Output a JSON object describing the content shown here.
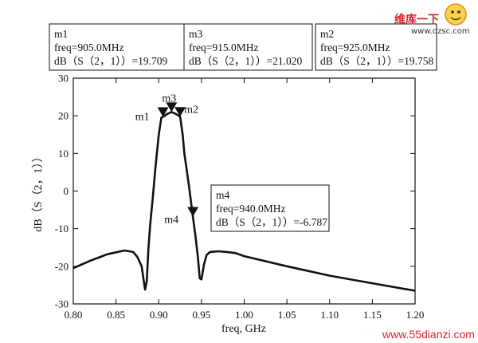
{
  "chart_data": {
    "type": "line",
    "xlabel": "freq, GHz",
    "ylabel": "dB（S（2，1））",
    "xlim": [
      0.8,
      1.2
    ],
    "ylim": [
      -30,
      30
    ],
    "x_ticks": [
      "0.80",
      "0.85",
      "0.90",
      "0.95",
      "1.00",
      "1.05",
      "1.10",
      "1.15",
      "1.20"
    ],
    "y_ticks": [
      "30",
      "20",
      "10",
      "0",
      "-10",
      "-20",
      "-30"
    ],
    "grid": false,
    "series": [
      {
        "x": [
          0.8,
          0.82,
          0.84,
          0.86,
          0.87,
          0.875,
          0.88,
          0.884,
          0.886,
          0.888,
          0.89,
          0.893,
          0.896,
          0.9,
          0.903,
          0.905,
          0.91,
          0.915,
          0.92,
          0.925,
          0.928,
          0.93,
          0.935,
          0.94,
          0.943,
          0.946,
          0.948,
          0.95,
          0.953,
          0.956,
          0.96,
          0.97,
          0.98,
          0.99,
          1.0,
          1.05,
          1.1,
          1.15,
          1.2
        ],
        "y": [
          -20.5,
          -18.5,
          -16.8,
          -15.8,
          -16.2,
          -17.5,
          -20.0,
          -26.2,
          -24.0,
          -15.0,
          -9.0,
          -2.0,
          6.0,
          15.0,
          19.5,
          19.709,
          20.5,
          21.02,
          20.5,
          19.758,
          15.0,
          10.0,
          2.0,
          -6.787,
          -12.0,
          -18.0,
          -23.2,
          -23.5,
          -19.5,
          -17.0,
          -16.2,
          -16.0,
          -16.2,
          -16.5,
          -17.3,
          -20.0,
          -22.5,
          -24.5,
          -26.5
        ]
      }
    ],
    "markers": [
      {
        "id": "m1",
        "x": 0.905,
        "y": 19.709
      },
      {
        "id": "m3",
        "x": 0.915,
        "y": 21.02
      },
      {
        "id": "m2",
        "x": 0.925,
        "y": 19.758
      },
      {
        "id": "m4",
        "x": 0.94,
        "y": -6.787
      }
    ],
    "info_boxes": [
      {
        "name": "m1",
        "freq": "freq=905.0MHz",
        "value": "dB（S（2，1））=19.709"
      },
      {
        "name": "m3",
        "freq": "freq=915.0MHz",
        "value": "dB（S（2，1））=21.020"
      },
      {
        "name": "m2",
        "freq": "freq=925.0MHz",
        "value": "dB（S（2，1））=19.758"
      },
      {
        "name": "m4",
        "freq": "freq=940.0MHz",
        "value": "dB（S（2，1））=-6.787"
      }
    ]
  },
  "watermark": {
    "cn": "维库一下",
    "url_top": "www.dzsc.com",
    "url_bottom": "www.55dianzi.com"
  },
  "colors": {
    "line": "#111111",
    "watermark_red": "#d8242b",
    "watermark_orange": "#e88a1a"
  }
}
